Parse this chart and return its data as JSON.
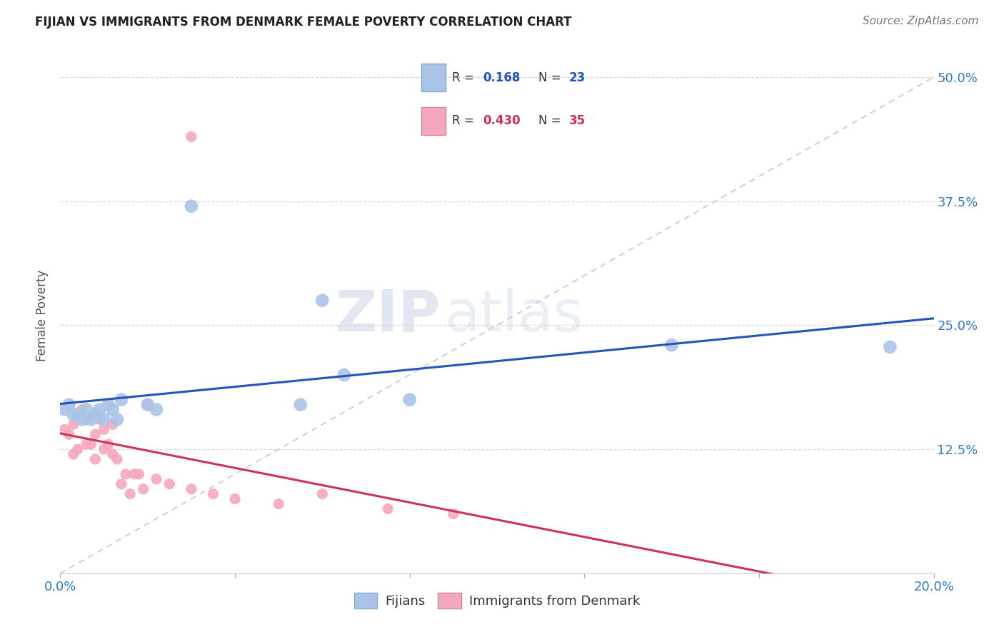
{
  "title": "FIJIAN VS IMMIGRANTS FROM DENMARK FEMALE POVERTY CORRELATION CHART",
  "source": "Source: ZipAtlas.com",
  "ylabel": "Female Poverty",
  "xlim": [
    0.0,
    0.2
  ],
  "ylim": [
    0.0,
    0.52
  ],
  "yticks": [
    0.0,
    0.125,
    0.25,
    0.375,
    0.5
  ],
  "ytick_labels": [
    "",
    "12.5%",
    "25.0%",
    "37.5%",
    "50.0%"
  ],
  "xticks": [
    0.0,
    0.04,
    0.08,
    0.12,
    0.16,
    0.2
  ],
  "xtick_labels": [
    "0.0%",
    "",
    "",
    "",
    "",
    "20.0%"
  ],
  "fijians_R": "0.168",
  "fijians_N": "23",
  "denmark_R": "0.430",
  "denmark_N": "35",
  "fijians_color": "#aac4e8",
  "denmark_color": "#f4a8bc",
  "fijians_line_color": "#2255bb",
  "denmark_line_color": "#cc3355",
  "diagonal_color": "#c8c8c8",
  "fijians_x": [
    0.001,
    0.002,
    0.003,
    0.004,
    0.005,
    0.006,
    0.007,
    0.008,
    0.009,
    0.01,
    0.011,
    0.012,
    0.013,
    0.014,
    0.02,
    0.022,
    0.03,
    0.055,
    0.06,
    0.065,
    0.08,
    0.14,
    0.19
  ],
  "fijians_y": [
    0.165,
    0.17,
    0.16,
    0.16,
    0.155,
    0.165,
    0.155,
    0.16,
    0.165,
    0.155,
    0.17,
    0.165,
    0.155,
    0.175,
    0.17,
    0.165,
    0.37,
    0.17,
    0.275,
    0.2,
    0.175,
    0.23,
    0.228
  ],
  "denmark_x": [
    0.001,
    0.002,
    0.003,
    0.003,
    0.004,
    0.005,
    0.006,
    0.006,
    0.007,
    0.008,
    0.008,
    0.009,
    0.01,
    0.01,
    0.011,
    0.012,
    0.012,
    0.013,
    0.014,
    0.015,
    0.016,
    0.017,
    0.018,
    0.019,
    0.02,
    0.022,
    0.025,
    0.03,
    0.035,
    0.04,
    0.05,
    0.06,
    0.075,
    0.09,
    0.03
  ],
  "denmark_y": [
    0.145,
    0.14,
    0.15,
    0.12,
    0.125,
    0.165,
    0.13,
    0.155,
    0.13,
    0.14,
    0.115,
    0.155,
    0.125,
    0.145,
    0.13,
    0.15,
    0.12,
    0.115,
    0.09,
    0.1,
    0.08,
    0.1,
    0.1,
    0.085,
    0.17,
    0.095,
    0.09,
    0.085,
    0.08,
    0.075,
    0.07,
    0.08,
    0.065,
    0.06,
    0.44
  ],
  "background_color": "#ffffff",
  "grid_color": "#d8d8d8"
}
